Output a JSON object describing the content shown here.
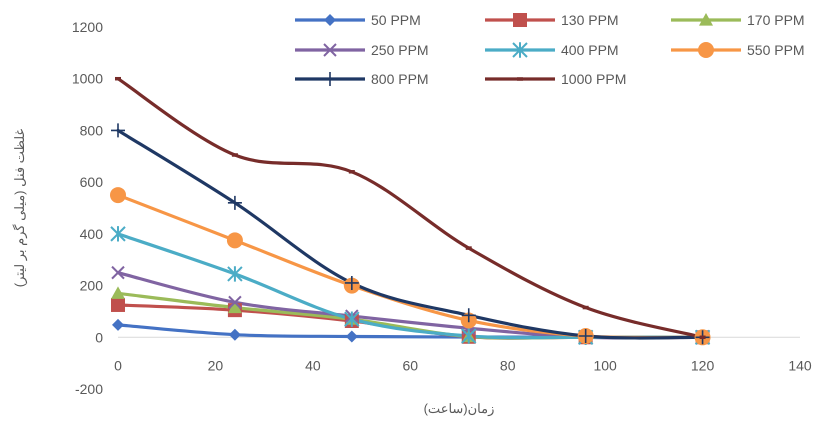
{
  "chart_data": {
    "type": "line",
    "smooth": true,
    "title": "",
    "xlabel": "زمان(ساعت)",
    "ylabel": "غلظت فنل (میلی گرم بر لیتر)",
    "xlim": [
      0,
      140
    ],
    "ylim": [
      -200,
      1200
    ],
    "x_ticks": [
      "0",
      "20",
      "40",
      "60",
      "80",
      "100",
      "120",
      "140"
    ],
    "y_ticks": [
      "-200",
      "0",
      "200",
      "400",
      "600",
      "800",
      "1000",
      "1200"
    ],
    "grid": false,
    "legend_position": "top",
    "x": [
      0,
      24,
      48,
      72,
      96,
      120
    ],
    "series": [
      {
        "name": "50 PPM",
        "color": "#4472C4",
        "marker": "diamond",
        "values": [
          48,
          10,
          3,
          1,
          0,
          0
        ]
      },
      {
        "name": "130 PPM",
        "color": "#C0504D",
        "marker": "square",
        "values": [
          125,
          105,
          63,
          2,
          0,
          0
        ]
      },
      {
        "name": "170 PPM",
        "color": "#9BBB59",
        "marker": "triangle",
        "values": [
          170,
          115,
          70,
          3,
          0,
          0
        ]
      },
      {
        "name": "250 PPM",
        "color": "#8064A2",
        "marker": "x",
        "values": [
          250,
          135,
          82,
          35,
          0,
          0
        ]
      },
      {
        "name": "400 PPM",
        "color": "#4BACC6",
        "marker": "star",
        "values": [
          400,
          245,
          70,
          5,
          0,
          0
        ]
      },
      {
        "name": "550 PPM",
        "color": "#F79646",
        "marker": "circle",
        "values": [
          550,
          375,
          200,
          65,
          5,
          0
        ]
      },
      {
        "name": "800 PPM",
        "color": "#1F3864",
        "marker": "plus",
        "values": [
          800,
          520,
          210,
          85,
          5,
          0
        ]
      },
      {
        "name": "1000 PPM",
        "color": "#772C2A",
        "marker": "dash",
        "values": [
          1000,
          705,
          640,
          345,
          115,
          0
        ]
      }
    ]
  }
}
